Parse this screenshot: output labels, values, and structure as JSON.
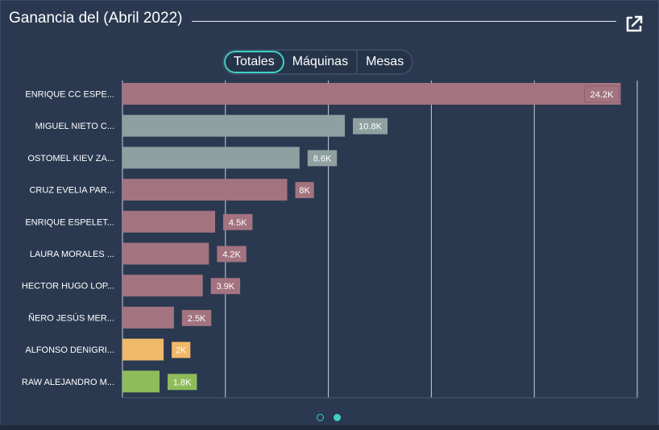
{
  "header": {
    "title": "Ganancia del (Abril 2022)",
    "expand_icon": "external-link-icon"
  },
  "tabs": [
    {
      "label": "Totales",
      "active": true
    },
    {
      "label": "Máquinas",
      "active": false
    },
    {
      "label": "Mesas",
      "active": false
    }
  ],
  "pager": {
    "count": 2,
    "active": 2
  },
  "colors": {
    "rose": "#a37380",
    "gray": "#8fa0a1",
    "orange": "#f0b86a",
    "green": "#8fbc5a",
    "grid": "#e6eaf0",
    "accent": "#3fd1c4"
  },
  "chart_data": {
    "type": "bar",
    "orientation": "horizontal",
    "categories": [
      "ENRIQUE CC ESPE...",
      "MIGUEL  NIETO C...",
      "OSTOMEL KIEV ZA...",
      "CRUZ EVELIA PAR...",
      "ENRIQUE ESPELET...",
      "LAURA  MORALES ...",
      "HECTOR HUGO LOP...",
      "ÑERO JESÚS  MER...",
      "ALFONSO DENIGRI...",
      "RAW ALEJANDRO M..."
    ],
    "values": [
      24200,
      10800,
      8600,
      8000,
      4500,
      4200,
      3900,
      2500,
      2000,
      1800
    ],
    "data_labels": [
      "24.2K",
      "10.8K",
      "8.6K",
      "8K",
      "4.5K",
      "4.2K",
      "3.9K",
      "2.5K",
      "2K",
      "1.8K"
    ],
    "bar_colors": [
      "#a37380",
      "#8fa0a1",
      "#8fa0a1",
      "#a37380",
      "#a37380",
      "#a37380",
      "#a37380",
      "#a37380",
      "#f0b86a",
      "#8fbc5a"
    ],
    "xlim": [
      0,
      25000
    ],
    "x_gridlines": [
      0,
      5000,
      10000,
      15000,
      20000,
      25000
    ],
    "grid": true,
    "legend": "none"
  }
}
